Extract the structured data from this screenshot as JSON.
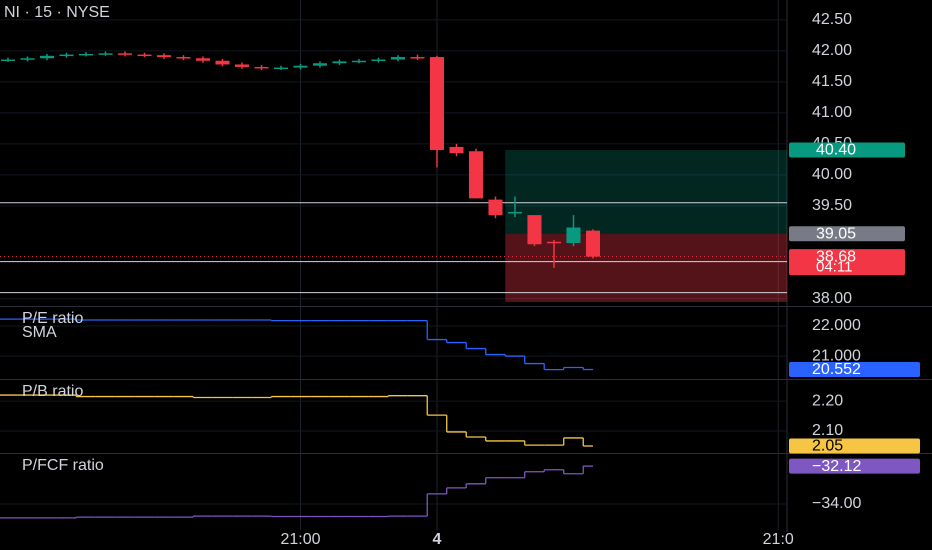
{
  "chart_data": [
    {
      "type": "candlestick",
      "title": "NI · 15 · NYSE",
      "xlim": [
        0,
        39.95
      ],
      "ylim": [
        37.9,
        42.82
      ],
      "yticks": [
        {
          "value": 42.5,
          "label": "42.50"
        },
        {
          "value": 42,
          "label": "42.00"
        },
        {
          "value": 41.5,
          "label": "41.50"
        },
        {
          "value": 41,
          "label": "41.00"
        },
        {
          "value": 40.5,
          "label": "40.50"
        },
        {
          "value": 40,
          "label": "40.00"
        },
        {
          "value": 39.5,
          "label": "39.50"
        },
        {
          "value": 38,
          "label": "38.00"
        }
      ],
      "up_color": "#089981",
      "down_color": "#f23645",
      "open": [
        41.85,
        41.86,
        41.88,
        41.92,
        41.94,
        41.95,
        41.96,
        41.94,
        41.93,
        41.9,
        41.88,
        41.84,
        41.78,
        41.74,
        41.72,
        41.73,
        41.76,
        41.8,
        41.83,
        41.84,
        41.86,
        41.9,
        41.9,
        40.45,
        40.38,
        39.6,
        39.4,
        39.35,
        38.92,
        38.9,
        39.1
      ],
      "high": [
        41.89,
        41.91,
        41.95,
        41.97,
        41.98,
        41.99,
        41.99,
        41.97,
        41.96,
        41.93,
        41.91,
        41.87,
        41.81,
        41.77,
        41.76,
        41.79,
        41.83,
        41.86,
        41.87,
        41.89,
        41.93,
        41.94,
        41.92,
        40.5,
        40.42,
        39.65,
        39.65,
        39.35,
        38.95,
        39.35,
        39.12
      ],
      "low": [
        41.82,
        41.83,
        41.85,
        41.89,
        41.91,
        41.92,
        41.91,
        41.9,
        41.87,
        41.85,
        41.81,
        41.75,
        41.71,
        41.69,
        41.69,
        41.7,
        41.73,
        41.77,
        41.8,
        41.81,
        41.83,
        41.85,
        40.12,
        40.3,
        39.62,
        39.3,
        39.32,
        38.85,
        38.5,
        38.85,
        38.65
      ],
      "close": [
        41.86,
        41.88,
        41.92,
        41.94,
        41.95,
        41.96,
        41.94,
        41.93,
        41.9,
        41.88,
        41.84,
        41.78,
        41.74,
        41.72,
        41.73,
        41.76,
        41.8,
        41.83,
        41.84,
        41.86,
        41.9,
        41.88,
        40.4,
        40.35,
        39.62,
        39.35,
        39.4,
        38.88,
        38.9,
        39.15,
        38.68
      ],
      "hlines": [
        39.55,
        38.6,
        38.1
      ],
      "position": {
        "start": 26,
        "target": 40.4,
        "entry": 39.05,
        "stop": 37.95
      },
      "price_labels": [
        {
          "value": 40.4,
          "label": "40.40",
          "color": "#089981"
        },
        {
          "value": 39.05,
          "label": "39.05",
          "color": "#787b86"
        },
        {
          "value": 38.68,
          "label": "38.68",
          "color": "#f23645"
        }
      ],
      "countdown": "04:11"
    },
    {
      "type": "line",
      "title": "P/E ratio",
      "subtitle": "SMA",
      "color": "#2962ff",
      "ylim": [
        20.27,
        22.6
      ],
      "yticks": [
        {
          "value": 22,
          "label": "22.000"
        },
        {
          "value": 21,
          "label": "21.000"
        }
      ],
      "values": [
        22.23,
        22.23,
        22.23,
        22.23,
        22.2,
        22.2,
        22.2,
        22.2,
        22.2,
        22.2,
        22.2,
        22.2,
        22.2,
        22.2,
        22.18,
        22.18,
        22.18,
        22.18,
        22.18,
        22.18,
        22.18,
        22.18,
        21.55,
        21.45,
        21.25,
        21.05,
        21.0,
        20.75,
        20.55,
        20.62,
        20.552
      ],
      "value_labels": {
        "30": "20.552"
      }
    },
    {
      "type": "line",
      "title": "P/B ratio",
      "color": "#f7c544",
      "ylim": [
        2.03,
        2.267
      ],
      "yticks": [
        {
          "value": 2.2,
          "label": "2.20"
        },
        {
          "value": 2.1,
          "label": "2.10"
        }
      ],
      "values": [
        2.22,
        2.22,
        2.22,
        2.22,
        2.215,
        2.215,
        2.215,
        2.215,
        2.215,
        2.215,
        2.212,
        2.212,
        2.212,
        2.212,
        2.215,
        2.215,
        2.215,
        2.215,
        2.215,
        2.215,
        2.218,
        2.218,
        2.153,
        2.097,
        2.08,
        2.067,
        2.067,
        2.053,
        2.053,
        2.077,
        2.05
      ],
      "value_labels": {
        "30": "2.05"
      }
    },
    {
      "type": "line",
      "title": "P/FCF ratio",
      "color": "#7e57c2",
      "ylim": [
        -35.29,
        -31.57
      ],
      "yticks": [
        {
          "value": -34,
          "label": "−34.00"
        }
      ],
      "values": [
        -34.69,
        -34.69,
        -34.69,
        -34.69,
        -34.65,
        -34.65,
        -34.65,
        -34.65,
        -34.65,
        -34.65,
        -34.6,
        -34.6,
        -34.6,
        -34.6,
        -34.62,
        -34.62,
        -34.62,
        -34.62,
        -34.62,
        -34.62,
        -34.6,
        -34.6,
        -33.5,
        -33.2,
        -33.0,
        -32.7,
        -32.7,
        -32.4,
        -32.3,
        -32.5,
        -32.12
      ],
      "value_labels": {
        "30": "−32.12"
      },
      "xticks": [
        {
          "value": 15,
          "label": "21:00"
        },
        {
          "value": 22,
          "label": "4"
        },
        {
          "value": 39.5,
          "label": "21:0"
        }
      ]
    }
  ]
}
